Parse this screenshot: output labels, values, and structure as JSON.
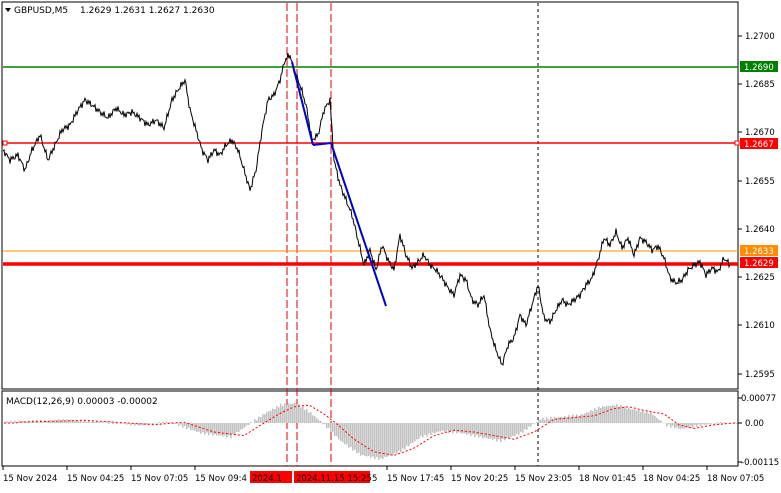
{
  "chart": {
    "symbol_label": "GBPUSD,M5",
    "ohlc_label": "1.2629 1.2631 1.2627 1.2630",
    "colors": {
      "background": "#ffffff",
      "price_line": "#000000",
      "trend_line": "#0000cc",
      "green_line": "#008000",
      "red_line": "#ff0000",
      "orange_line": "#ff8c00",
      "red_dashed": "#e00000",
      "macd_hist": "#c0c0c0",
      "macd_signal": "#ff0000"
    }
  },
  "price_axis": {
    "ticks": [
      "1.2700",
      "1.2685",
      "1.2670",
      "1.2655",
      "1.2640",
      "1.2625",
      "1.2610",
      "1.2595"
    ]
  },
  "price_levels": [
    {
      "label": "1.2690",
      "color": "#008000"
    },
    {
      "label": "1.2667",
      "color": "#ff0000"
    },
    {
      "label": "1.2633",
      "color": "#ff8c00"
    },
    {
      "label": "1.2629",
      "color": "#ff0000"
    }
  ],
  "macd": {
    "label": "MACD(12,26,9) 0.00003 -0.00002",
    "ticks": [
      "0.00077",
      "0.00",
      "-0.00115"
    ]
  },
  "time_axis": {
    "labels": [
      "15 Nov 2024",
      "15 Nov 04:25",
      "15 Nov 07:05",
      "15 Nov 09:4",
      "15 Nov 17:45",
      "15 Nov 20:25",
      "15 Nov 23:05",
      "18 Nov 01:45",
      "18 Nov 04:25",
      "18 Nov 07:05"
    ],
    "highlight_label_1": "2024.1",
    "highlight_label_2": "2024.11.15 15:25",
    "highlight_suffix": "5"
  }
}
